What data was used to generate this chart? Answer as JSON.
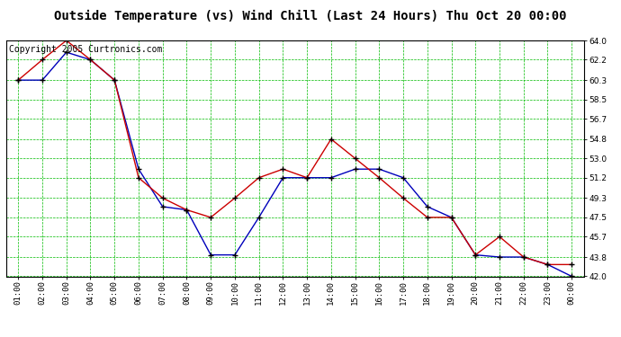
{
  "title": "Outside Temperature (vs) Wind Chill (Last 24 Hours) Thu Oct 20 00:00",
  "copyright": "Copyright 2005 Curtronics.com",
  "x_labels": [
    "01:00",
    "02:00",
    "03:00",
    "04:00",
    "05:00",
    "06:00",
    "07:00",
    "08:00",
    "09:00",
    "10:00",
    "11:00",
    "12:00",
    "13:00",
    "14:00",
    "15:00",
    "16:00",
    "17:00",
    "18:00",
    "19:00",
    "20:00",
    "21:00",
    "22:00",
    "23:00",
    "00:00"
  ],
  "temp_blue": [
    60.3,
    60.3,
    62.9,
    62.2,
    60.3,
    52.0,
    48.5,
    48.2,
    44.0,
    44.0,
    47.5,
    51.2,
    51.2,
    51.2,
    52.0,
    52.0,
    51.2,
    48.5,
    47.5,
    44.0,
    43.8,
    43.8,
    43.1,
    42.0
  ],
  "windchill_red": [
    60.3,
    62.2,
    64.0,
    62.2,
    60.3,
    51.2,
    49.3,
    48.2,
    47.5,
    49.3,
    51.2,
    52.0,
    51.2,
    54.8,
    53.0,
    51.2,
    49.3,
    47.5,
    47.5,
    44.0,
    45.7,
    43.8,
    43.1,
    43.1
  ],
  "ylim": [
    42.0,
    64.0
  ],
  "yticks": [
    42.0,
    43.8,
    45.7,
    47.5,
    49.3,
    51.2,
    53.0,
    54.8,
    56.7,
    58.5,
    60.3,
    62.2,
    64.0
  ],
  "blue_color": "#0000bb",
  "red_color": "#cc0000",
  "bg_color": "#ffffff",
  "plot_bg": "#ffffff",
  "grid_color": "#00bb00",
  "title_fontsize": 10,
  "copyright_fontsize": 7
}
